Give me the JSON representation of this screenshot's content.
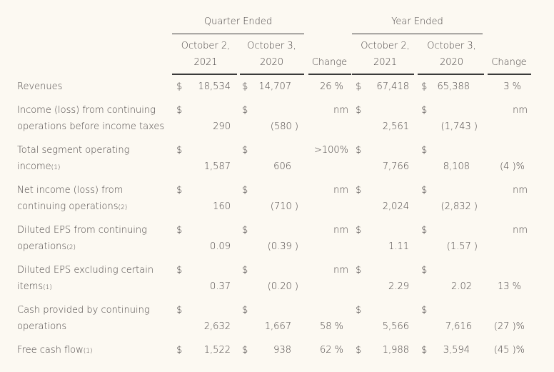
{
  "headers": {
    "quarter_group": "Quarter Ended",
    "year_group": "Year Ended",
    "q_col1": [
      "October 2,",
      "2021"
    ],
    "q_col2": [
      "October 3,",
      "2020"
    ],
    "q_change": "Change",
    "y_col1": [
      "October 2,",
      "2021"
    ],
    "y_col2": [
      "October 3,",
      "2020"
    ],
    "y_change": "Change"
  },
  "rows": [
    {
      "label": [
        "Revenues"
      ],
      "label_note": [
        ""
      ],
      "q1d": "$",
      "q1": "18,534",
      "q2d": "$",
      "q2": "14,707",
      "qc": "26 %",
      "y1d": "$",
      "y1": "67,418",
      "y2d": "$",
      "y2": "65,388",
      "yc": "3 %"
    },
    {
      "label": [
        "Income (loss) from continuing",
        "operations before income taxes"
      ],
      "label_note": [
        "",
        ""
      ],
      "q1d": "$",
      "q1": "290",
      "q2d": "$",
      "q2": "(580 )",
      "qc": "nm",
      "y1d": "$",
      "y1": "2,561",
      "y2d": "$",
      "y2": "(1,743 )",
      "yc": "nm"
    },
    {
      "label": [
        "Total segment operating",
        "income"
      ],
      "label_note": [
        "",
        "(1)"
      ],
      "q1d": "$",
      "q1": "1,587",
      "q2d": "$",
      "q2": "606",
      "qc": ">100%",
      "y1d": "$",
      "y1": "7,766",
      "y2d": "$",
      "y2": "8,108",
      "yc": "(4 )%"
    },
    {
      "label": [
        "Net income (loss) from",
        "continuing operations"
      ],
      "label_note": [
        "",
        "(2)"
      ],
      "q1d": "$",
      "q1": "160",
      "q2d": "$",
      "q2": "(710 )",
      "qc": "nm",
      "y1d": "$",
      "y1": "2,024",
      "y2d": "$",
      "y2": "(2,832 )",
      "yc": "nm"
    },
    {
      "label": [
        "Diluted EPS from continuing",
        "operations"
      ],
      "label_note": [
        "",
        "(2)"
      ],
      "q1d": "$",
      "q1": "0.09",
      "q2d": "$",
      "q2": "(0.39 )",
      "qc": "nm",
      "y1d": "$",
      "y1": "1.11",
      "y2d": "$",
      "y2": "(1.57 )",
      "yc": "nm"
    },
    {
      "label": [
        "Diluted EPS excluding certain",
        "items"
      ],
      "label_note": [
        "",
        "(1)"
      ],
      "q1d": "$",
      "q1": "0.37",
      "q2d": "$",
      "q2": "(0.20 )",
      "qc": "nm",
      "y1d": "$",
      "y1": "2.29",
      "y2d": "$",
      "y2": "2.02",
      "yc": "13 %"
    },
    {
      "label": [
        "Cash provided by continuing",
        "operations"
      ],
      "label_note": [
        "",
        ""
      ],
      "q1d": "$",
      "q1": "2,632",
      "q2d": "$",
      "q2": "1,667",
      "qc": "58 %",
      "y1d": "$",
      "y1": "5,566",
      "y2d": "$",
      "y2": "7,616",
      "yc": "(27 )%"
    },
    {
      "label": [
        "Free cash flow"
      ],
      "label_note": [
        "(1)"
      ],
      "q1d": "$",
      "q1": "1,522",
      "q2d": "$",
      "q2": "938",
      "qc": "62 %",
      "y1d": "$",
      "y1": "1,988",
      "y2d": "$",
      "y2": "3,594",
      "yc": "(45 )%"
    }
  ]
}
